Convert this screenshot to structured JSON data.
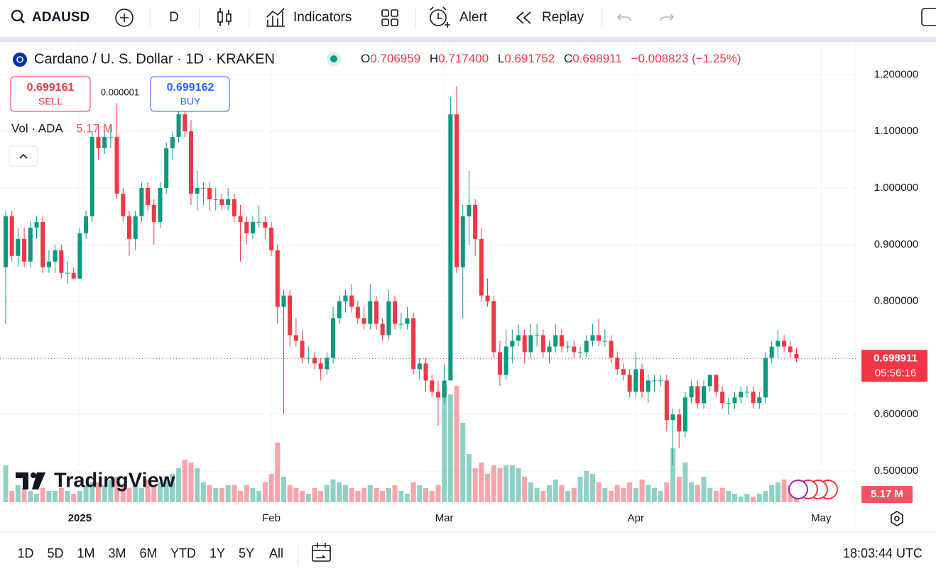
{
  "toolbar": {
    "symbol": "ADAUSD",
    "interval": "D",
    "indicators": "Indicators",
    "alert": "Alert",
    "replay": "Replay"
  },
  "legend": {
    "title": "Cardano / U. S. Dollar · 1D · KRAKEN",
    "o_label": "O",
    "o": "0.706959",
    "h_label": "H",
    "h": "0.717400",
    "l_label": "L",
    "l": "0.691752",
    "c_label": "C",
    "c": "0.698911",
    "change": "−0.008823 (−1.25%)"
  },
  "trade": {
    "sell_price": "0.699161",
    "sell": "SELL",
    "spread": "0.000001",
    "buy_price": "0.699162",
    "buy": "BUY"
  },
  "volume_legend": {
    "label": "Vol · ADA",
    "value": "5.17 M"
  },
  "watermark": "TradingView",
  "bottom_bar": {
    "ranges": [
      "1D",
      "5D",
      "1M",
      "3M",
      "6M",
      "YTD",
      "1Y",
      "5Y",
      "All"
    ],
    "clock": "18:03:44 UTC"
  },
  "chart_data": {
    "type": "candlestick",
    "up_color": "#089981",
    "down_color": "#f23645",
    "xlim": [
      -0.92,
      137.6
    ],
    "xticks": [
      {
        "value": 12,
        "label": "2025"
      },
      {
        "value": 43,
        "label": "Feb"
      },
      {
        "value": 71,
        "label": "Mar"
      },
      {
        "value": 102,
        "label": "Apr"
      },
      {
        "value": 132,
        "label": "May"
      }
    ],
    "ylim": [
      0.445,
      1.258
    ],
    "yticks": [
      {
        "value": 0.5,
        "label": "0.500000"
      },
      {
        "value": 0.6,
        "label": "0.600000"
      },
      {
        "value": 0.7,
        "label": "0.700000"
      },
      {
        "value": 0.8,
        "label": "0.800000"
      },
      {
        "value": 0.9,
        "label": "0.900000"
      },
      {
        "value": 1.0,
        "label": "1.000000"
      },
      {
        "value": 1.1,
        "label": "1.100000"
      },
      {
        "value": 1.2,
        "label": "1.200000"
      }
    ],
    "hidden_ytick_labels": [
      0.7
    ],
    "grid": true,
    "last_price": {
      "value": 0.698911,
      "label": "0.698911"
    },
    "countdown": "05:56:16",
    "volume_ylim": [
      0,
      42
    ],
    "last_volume_label": "5.17 M",
    "candles": [
      [
        0.86,
        0.96,
        0.76,
        0.95
      ],
      [
        0.95,
        0.96,
        0.87,
        0.88
      ],
      [
        0.88,
        0.93,
        0.86,
        0.91
      ],
      [
        0.91,
        0.93,
        0.86,
        0.87
      ],
      [
        0.87,
        0.94,
        0.86,
        0.93
      ],
      [
        0.93,
        0.95,
        0.91,
        0.94
      ],
      [
        0.94,
        0.95,
        0.85,
        0.86
      ],
      [
        0.86,
        0.89,
        0.85,
        0.87
      ],
      [
        0.87,
        0.9,
        0.85,
        0.89
      ],
      [
        0.89,
        0.9,
        0.84,
        0.85
      ],
      [
        0.85,
        0.87,
        0.83,
        0.85
      ],
      [
        0.85,
        0.86,
        0.84,
        0.84
      ],
      [
        0.84,
        0.93,
        0.84,
        0.92
      ],
      [
        0.92,
        0.96,
        0.91,
        0.95
      ],
      [
        0.95,
        1.1,
        0.94,
        1.09
      ],
      [
        1.09,
        1.11,
        1.05,
        1.07
      ],
      [
        1.07,
        1.1,
        1.06,
        1.09
      ],
      [
        1.09,
        1.11,
        1.07,
        1.09
      ],
      [
        1.09,
        1.15,
        0.98,
        0.99
      ],
      [
        0.99,
        1.0,
        0.94,
        0.95
      ],
      [
        0.95,
        0.96,
        0.88,
        0.91
      ],
      [
        0.91,
        0.96,
        0.89,
        0.95
      ],
      [
        0.95,
        1.01,
        0.94,
        1.0
      ],
      [
        1.0,
        1.01,
        0.96,
        0.97
      ],
      [
        0.97,
        0.98,
        0.9,
        0.94
      ],
      [
        0.94,
        1.01,
        0.93,
        1.0
      ],
      [
        1.0,
        1.08,
        0.99,
        1.07
      ],
      [
        1.07,
        1.1,
        1.05,
        1.09
      ],
      [
        1.09,
        1.16,
        1.08,
        1.13
      ],
      [
        1.13,
        1.14,
        1.09,
        1.1
      ],
      [
        1.1,
        1.12,
        0.97,
        0.99
      ],
      [
        0.99,
        1.03,
        0.96,
        1.0
      ],
      [
        1.0,
        1.01,
        0.97,
        1.0
      ],
      [
        1.0,
        1.01,
        0.96,
        0.98
      ],
      [
        0.98,
        1.0,
        0.96,
        0.98
      ],
      [
        0.98,
        0.99,
        0.96,
        0.97
      ],
      [
        0.97,
        1.0,
        0.96,
        0.98
      ],
      [
        0.98,
        0.99,
        0.94,
        0.95
      ],
      [
        0.95,
        0.97,
        0.87,
        0.94
      ],
      [
        0.94,
        0.95,
        0.9,
        0.92
      ],
      [
        0.92,
        0.95,
        0.91,
        0.94
      ],
      [
        0.94,
        0.97,
        0.93,
        0.94
      ],
      [
        0.94,
        0.95,
        0.91,
        0.93
      ],
      [
        0.93,
        0.94,
        0.88,
        0.89
      ],
      [
        0.89,
        0.9,
        0.76,
        0.79
      ],
      [
        0.79,
        0.82,
        0.6,
        0.81
      ],
      [
        0.81,
        0.82,
        0.72,
        0.74
      ],
      [
        0.74,
        0.77,
        0.72,
        0.73
      ],
      [
        0.73,
        0.75,
        0.69,
        0.7
      ],
      [
        0.7,
        0.72,
        0.69,
        0.7
      ],
      [
        0.7,
        0.71,
        0.68,
        0.69
      ],
      [
        0.69,
        0.7,
        0.66,
        0.68
      ],
      [
        0.68,
        0.71,
        0.67,
        0.7
      ],
      [
        0.7,
        0.79,
        0.69,
        0.77
      ],
      [
        0.77,
        0.81,
        0.76,
        0.8
      ],
      [
        0.8,
        0.82,
        0.78,
        0.81
      ],
      [
        0.81,
        0.83,
        0.78,
        0.79
      ],
      [
        0.79,
        0.8,
        0.76,
        0.77
      ],
      [
        0.77,
        0.79,
        0.75,
        0.76
      ],
      [
        0.76,
        0.83,
        0.75,
        0.8
      ],
      [
        0.8,
        0.81,
        0.75,
        0.76
      ],
      [
        0.76,
        0.77,
        0.73,
        0.74
      ],
      [
        0.74,
        0.82,
        0.73,
        0.8
      ],
      [
        0.8,
        0.81,
        0.75,
        0.76
      ],
      [
        0.76,
        0.78,
        0.75,
        0.76
      ],
      [
        0.76,
        0.79,
        0.75,
        0.77
      ],
      [
        0.77,
        0.78,
        0.67,
        0.68
      ],
      [
        0.68,
        0.7,
        0.66,
        0.69
      ],
      [
        0.69,
        0.7,
        0.64,
        0.66
      ],
      [
        0.66,
        0.67,
        0.63,
        0.64
      ],
      [
        0.64,
        0.66,
        0.58,
        0.63
      ],
      [
        0.63,
        0.69,
        0.62,
        0.66
      ],
      [
        0.66,
        1.16,
        0.66,
        1.13
      ],
      [
        1.13,
        1.18,
        0.85,
        0.86
      ],
      [
        0.86,
        0.97,
        0.77,
        0.95
      ],
      [
        0.95,
        1.03,
        0.9,
        0.97
      ],
      [
        0.97,
        0.98,
        0.88,
        0.91
      ],
      [
        0.91,
        0.93,
        0.8,
        0.81
      ],
      [
        0.81,
        0.84,
        0.79,
        0.8
      ],
      [
        0.8,
        0.81,
        0.7,
        0.71
      ],
      [
        0.71,
        0.73,
        0.65,
        0.67
      ],
      [
        0.67,
        0.75,
        0.66,
        0.72
      ],
      [
        0.72,
        0.75,
        0.69,
        0.73
      ],
      [
        0.73,
        0.76,
        0.72,
        0.74
      ],
      [
        0.74,
        0.75,
        0.69,
        0.71
      ],
      [
        0.71,
        0.76,
        0.7,
        0.74
      ],
      [
        0.74,
        0.76,
        0.72,
        0.74
      ],
      [
        0.74,
        0.75,
        0.7,
        0.71
      ],
      [
        0.71,
        0.73,
        0.69,
        0.72
      ],
      [
        0.72,
        0.76,
        0.71,
        0.74
      ],
      [
        0.74,
        0.75,
        0.71,
        0.72
      ],
      [
        0.72,
        0.73,
        0.71,
        0.72
      ],
      [
        0.72,
        0.73,
        0.7,
        0.71
      ],
      [
        0.71,
        0.72,
        0.7,
        0.71
      ],
      [
        0.71,
        0.74,
        0.7,
        0.73
      ],
      [
        0.73,
        0.76,
        0.72,
        0.74
      ],
      [
        0.74,
        0.77,
        0.72,
        0.73
      ],
      [
        0.73,
        0.75,
        0.72,
        0.73
      ],
      [
        0.73,
        0.74,
        0.69,
        0.7
      ],
      [
        0.7,
        0.71,
        0.67,
        0.68
      ],
      [
        0.68,
        0.69,
        0.66,
        0.67
      ],
      [
        0.67,
        0.68,
        0.63,
        0.64
      ],
      [
        0.64,
        0.71,
        0.63,
        0.68
      ],
      [
        0.68,
        0.69,
        0.63,
        0.64
      ],
      [
        0.64,
        0.67,
        0.62,
        0.66
      ],
      [
        0.66,
        0.67,
        0.64,
        0.66
      ],
      [
        0.66,
        0.67,
        0.65,
        0.66
      ],
      [
        0.66,
        0.67,
        0.57,
        0.59
      ],
      [
        0.59,
        0.61,
        0.51,
        0.6
      ],
      [
        0.6,
        0.61,
        0.54,
        0.57
      ],
      [
        0.57,
        0.64,
        0.56,
        0.63
      ],
      [
        0.63,
        0.66,
        0.62,
        0.65
      ],
      [
        0.65,
        0.66,
        0.61,
        0.62
      ],
      [
        0.62,
        0.66,
        0.61,
        0.65
      ],
      [
        0.65,
        0.67,
        0.64,
        0.67
      ],
      [
        0.67,
        0.67,
        0.63,
        0.64
      ],
      [
        0.64,
        0.65,
        0.61,
        0.62
      ],
      [
        0.62,
        0.63,
        0.6,
        0.62
      ],
      [
        0.62,
        0.64,
        0.61,
        0.63
      ],
      [
        0.63,
        0.65,
        0.62,
        0.64
      ],
      [
        0.64,
        0.65,
        0.63,
        0.64
      ],
      [
        0.64,
        0.65,
        0.61,
        0.62
      ],
      [
        0.62,
        0.64,
        0.61,
        0.63
      ],
      [
        0.63,
        0.71,
        0.62,
        0.7
      ],
      [
        0.7,
        0.73,
        0.69,
        0.72
      ],
      [
        0.72,
        0.75,
        0.7,
        0.73
      ],
      [
        0.73,
        0.74,
        0.71,
        0.72
      ],
      [
        0.72,
        0.73,
        0.7,
        0.71
      ],
      [
        0.706959,
        0.7174,
        0.691752,
        0.698911
      ]
    ],
    "volumes": [
      13,
      4,
      6,
      5,
      4,
      3,
      5,
      4,
      4,
      5,
      4,
      3,
      4,
      6,
      7,
      7,
      6,
      8,
      9,
      6,
      5,
      6,
      5,
      8,
      6,
      7,
      9,
      10,
      12,
      15,
      14,
      12,
      7,
      6,
      5,
      5,
      6,
      6,
      4,
      6,
      5,
      4,
      7,
      10,
      21,
      9,
      6,
      5,
      4,
      3,
      5,
      4,
      6,
      8,
      7,
      6,
      5,
      4,
      5,
      6,
      5,
      4,
      5,
      6,
      4,
      3,
      7,
      6,
      5,
      4,
      6,
      41,
      38,
      41,
      28,
      17,
      12,
      14,
      10,
      13,
      12,
      13,
      13,
      12,
      9,
      7,
      5,
      4,
      6,
      8,
      6,
      4,
      5,
      9,
      11,
      10,
      7,
      5,
      4,
      6,
      5,
      7,
      5,
      8,
      6,
      5,
      4,
      7,
      19,
      9,
      14,
      7,
      6,
      9,
      5,
      4,
      5,
      4,
      3,
      2,
      3,
      2,
      3,
      4,
      6,
      7,
      8,
      6,
      5.17
    ]
  }
}
